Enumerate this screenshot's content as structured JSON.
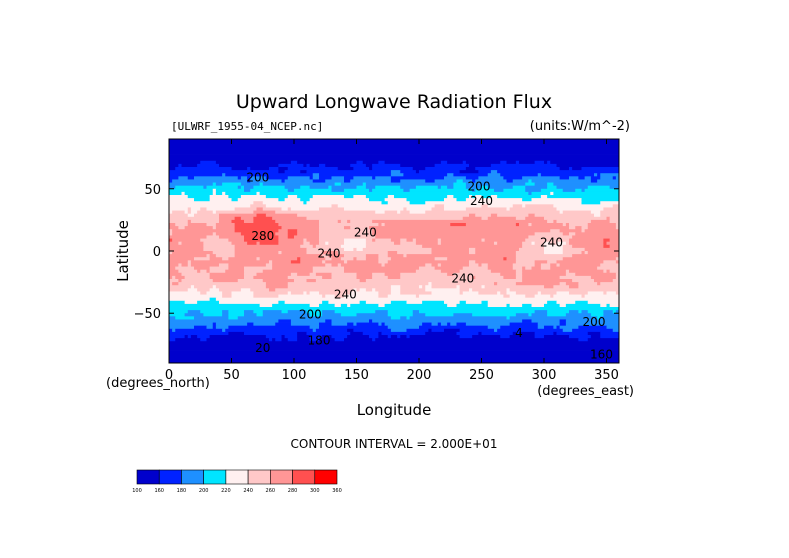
{
  "chart_data": {
    "type": "heatmap",
    "title": "Upward Longwave Radiation Flux",
    "source_label": "[ULWRF_1955-04_NCEP.nc]",
    "units_label": "(units:W/m^-2)",
    "xlabel": "Longitude",
    "ylabel": "Latitude",
    "x_unit_label": "(degrees_east)",
    "y_unit_label": "(degrees_north)",
    "xlim": [
      0,
      360
    ],
    "ylim": [
      -90,
      90
    ],
    "x_ticks": [
      0,
      50,
      100,
      150,
      200,
      250,
      300,
      350
    ],
    "y_ticks": [
      50,
      0,
      -50
    ],
    "contour_interval_text": "CONTOUR INTERVAL = 2.000E+01",
    "contour_labels": [
      {
        "text": "200",
        "lon": 71,
        "lat": 59
      },
      {
        "text": "200",
        "lon": 248,
        "lat": 52
      },
      {
        "text": "240",
        "lon": 250,
        "lat": 40
      },
      {
        "text": "280",
        "lon": 75,
        "lat": 12
      },
      {
        "text": "240",
        "lon": 157,
        "lat": 15
      },
      {
        "text": "240",
        "lon": 128,
        "lat": -2
      },
      {
        "text": "240",
        "lon": 306,
        "lat": 7
      },
      {
        "text": "240",
        "lon": 235,
        "lat": -22
      },
      {
        "text": "240",
        "lon": 141,
        "lat": -35
      },
      {
        "text": "200",
        "lon": 113,
        "lat": -51
      },
      {
        "text": "200",
        "lon": 340,
        "lat": -57
      },
      {
        "text": "4",
        "lon": 280,
        "lat": -66
      },
      {
        "text": "180",
        "lon": 120,
        "lat": -72
      },
      {
        "text": "160",
        "lon": 346,
        "lat": -83
      },
      {
        "text": "20",
        "lon": 75,
        "lat": -78
      }
    ],
    "colorbar": {
      "levels": [
        "100",
        "160",
        "180",
        "200",
        "220",
        "240",
        "260",
        "280",
        "300",
        "360"
      ],
      "colors": [
        "#0000cc",
        "#0022ff",
        "#1e90ff",
        "#00e5ff",
        "#fff0f0",
        "#ffc8c8",
        "#ff9696",
        "#ff5050",
        "#ff0000"
      ]
    }
  }
}
